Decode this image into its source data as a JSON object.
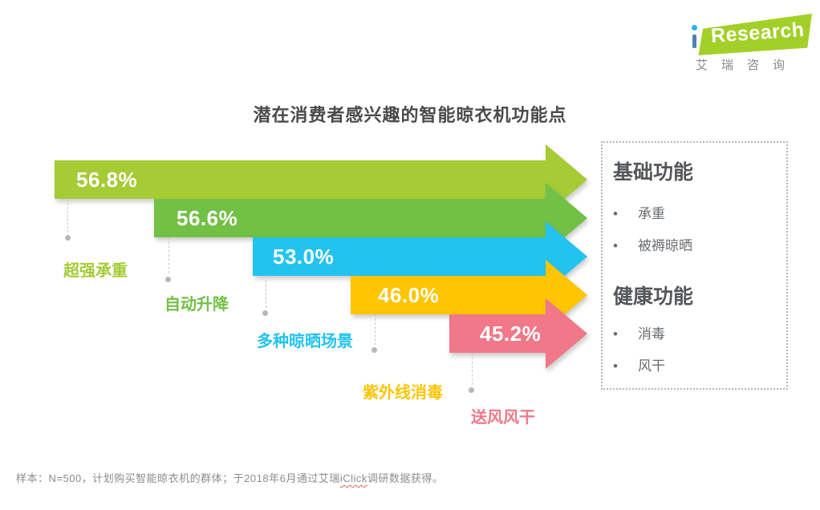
{
  "logo": {
    "brand_i": "i",
    "brand_rest": "Research",
    "company_cn": "艾瑞咨询",
    "flag_color": "#a2d028",
    "i_dot_color": "#2bb3e8",
    "i_stem_color": "#4a85aa"
  },
  "chart_data": {
    "type": "bar",
    "title": "潜在消费者感兴趣的智能晾衣机功能点",
    "orientation": "horizontal-staircase-arrows",
    "unit": "%",
    "categories": [
      "超强承重",
      "自动升降",
      "多种晾晒场景",
      "紫外线消毒",
      "送风风干"
    ],
    "values": [
      56.8,
      56.6,
      53.0,
      46.0,
      45.2
    ],
    "bars": [
      {
        "label": "超强承重",
        "value": 56.8,
        "value_label": "56.8%",
        "color": "#a5cb35"
      },
      {
        "label": "自动升降",
        "value": 56.6,
        "value_label": "56.6%",
        "color": "#72c045"
      },
      {
        "label": "多种晾晒场景",
        "value": 53.0,
        "value_label": "53.0%",
        "color": "#23c3f0"
      },
      {
        "label": "紫外线消毒",
        "value": 46.0,
        "value_label": "46.0%",
        "color": "#fec500"
      },
      {
        "label": "送风风干",
        "value": 45.2,
        "value_label": "45.2%",
        "color": "#f07888"
      }
    ],
    "legend_panel": {
      "groups": [
        {
          "heading": "基础功能",
          "items": [
            "承重",
            "被褥晾晒"
          ]
        },
        {
          "heading": "健康功能",
          "items": [
            "消毒",
            "风干"
          ]
        }
      ]
    }
  },
  "footer": {
    "text_before": "样本：N=500，计划购买智能晾衣机的群体；于2018年6月通过艾瑞",
    "spellcheck_word": "iClick",
    "text_after": "调研数据获得。"
  }
}
